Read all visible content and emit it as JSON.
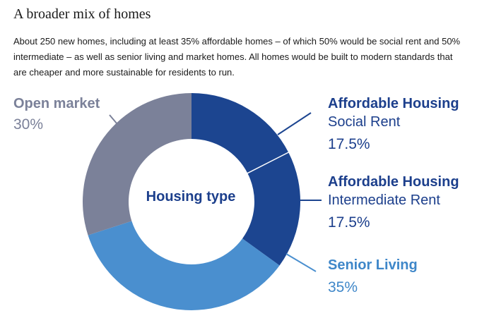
{
  "title": "A broader mix of homes",
  "description": "About 250 new homes, including at least 35% affordable homes – of which 50% would be social rent and 50% intermediate – as well as senior living and market homes. All homes would be built to modern standards that are cheaper and more sustainable for residents to run.",
  "chart_data": {
    "type": "pie",
    "style": "donut",
    "center_label": "Housing type",
    "slices": [
      {
        "heading": "Affordable Housing",
        "sub": "Social Rent",
        "label": "17.5%",
        "value": 17.5,
        "color": "#1c4590",
        "text_color": "#1c3f8c"
      },
      {
        "heading": "Affordable Housing",
        "sub": "Intermediate Rent",
        "label": "17.5%",
        "value": 17.5,
        "color": "#1c4590",
        "text_color": "#1c3f8c"
      },
      {
        "heading": "Senior Living",
        "sub": "",
        "label": "35%",
        "value": 35,
        "color": "#4a8fcf",
        "text_color": "#3f87c9"
      },
      {
        "heading": "Open market",
        "sub": "",
        "label": "30%",
        "value": 30,
        "color": "#7b8199",
        "text_color": "#7b8199"
      }
    ]
  }
}
